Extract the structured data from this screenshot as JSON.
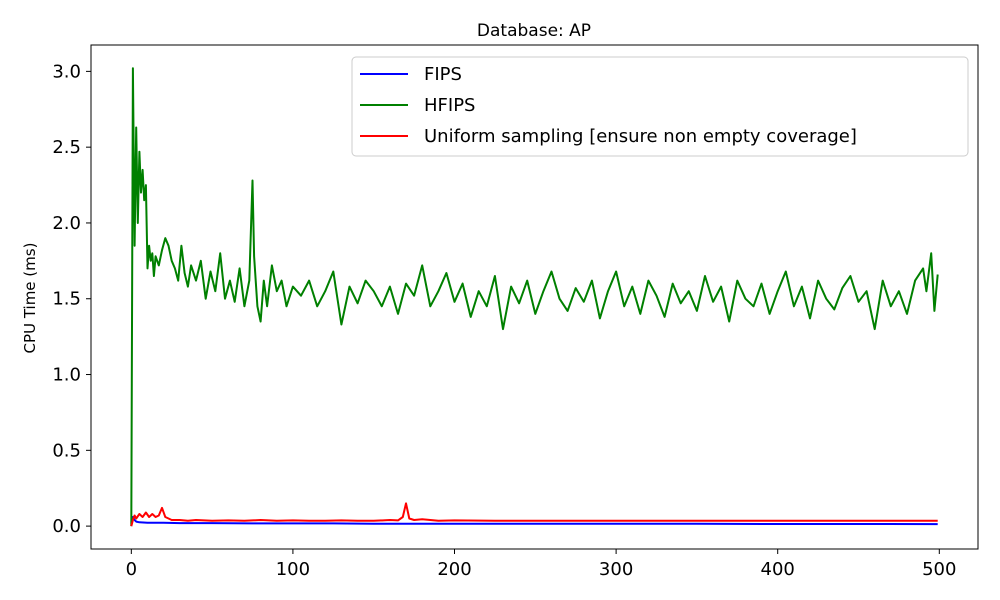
{
  "chart_data": {
    "type": "line",
    "title": "Database: AP",
    "xlabel": "",
    "ylabel": "CPU Time (ms)",
    "xlim": [
      -24.95,
      523.95
    ],
    "ylim": [
      -0.151,
      3.174
    ],
    "xticks": [
      0,
      100,
      200,
      300,
      400,
      500
    ],
    "yticks": [
      0.0,
      0.5,
      1.0,
      1.5,
      2.0,
      2.5,
      3.0
    ],
    "grid": false,
    "legend_position": "top-right",
    "series": [
      {
        "name": "FIPS",
        "color": "#0000ff",
        "x": [
          0,
          1,
          2,
          3,
          5,
          10,
          15,
          20,
          30,
          50,
          75,
          100,
          125,
          150,
          175,
          200,
          250,
          300,
          350,
          400,
          450,
          499
        ],
        "y": [
          0.0,
          0.06,
          0.04,
          0.03,
          0.025,
          0.022,
          0.022,
          0.022,
          0.02,
          0.02,
          0.018,
          0.018,
          0.018,
          0.016,
          0.016,
          0.016,
          0.015,
          0.015,
          0.015,
          0.014,
          0.014,
          0.013
        ]
      },
      {
        "name": "HFIPS",
        "color": "#008000",
        "x": [
          0,
          1,
          2,
          3,
          4,
          5,
          6,
          7,
          8,
          9,
          10,
          11,
          12,
          13,
          14,
          15,
          17,
          19,
          21,
          23,
          25,
          27,
          29,
          31,
          33,
          35,
          37,
          40,
          43,
          46,
          49,
          52,
          55,
          58,
          61,
          64,
          67,
          70,
          73,
          75,
          76,
          78,
          80,
          82,
          84,
          87,
          90,
          93,
          96,
          100,
          105,
          110,
          115,
          120,
          125,
          130,
          135,
          140,
          145,
          150,
          155,
          160,
          165,
          170,
          175,
          180,
          185,
          190,
          195,
          200,
          205,
          210,
          215,
          220,
          225,
          230,
          235,
          240,
          245,
          250,
          255,
          260,
          265,
          270,
          275,
          280,
          285,
          290,
          295,
          300,
          305,
          310,
          315,
          320,
          325,
          330,
          335,
          340,
          345,
          350,
          355,
          360,
          365,
          370,
          375,
          380,
          385,
          390,
          395,
          400,
          405,
          410,
          415,
          420,
          425,
          430,
          435,
          440,
          445,
          450,
          455,
          460,
          465,
          470,
          475,
          480,
          485,
          490,
          492,
          495,
          497,
          499
        ],
        "y": [
          0.0,
          3.02,
          1.85,
          2.63,
          2.0,
          2.47,
          2.2,
          2.35,
          2.15,
          2.25,
          1.7,
          1.85,
          1.75,
          1.8,
          1.65,
          1.78,
          1.72,
          1.82,
          1.9,
          1.85,
          1.75,
          1.7,
          1.62,
          1.85,
          1.67,
          1.58,
          1.72,
          1.62,
          1.75,
          1.5,
          1.68,
          1.55,
          1.8,
          1.5,
          1.62,
          1.48,
          1.7,
          1.45,
          1.62,
          2.28,
          1.78,
          1.45,
          1.35,
          1.62,
          1.45,
          1.72,
          1.55,
          1.62,
          1.45,
          1.58,
          1.52,
          1.62,
          1.45,
          1.55,
          1.68,
          1.33,
          1.58,
          1.47,
          1.62,
          1.55,
          1.45,
          1.58,
          1.4,
          1.6,
          1.52,
          1.72,
          1.45,
          1.55,
          1.67,
          1.48,
          1.6,
          1.38,
          1.55,
          1.45,
          1.65,
          1.3,
          1.58,
          1.47,
          1.62,
          1.4,
          1.55,
          1.68,
          1.5,
          1.42,
          1.57,
          1.48,
          1.62,
          1.37,
          1.55,
          1.68,
          1.45,
          1.58,
          1.4,
          1.62,
          1.52,
          1.38,
          1.6,
          1.47,
          1.55,
          1.42,
          1.65,
          1.48,
          1.58,
          1.35,
          1.62,
          1.5,
          1.45,
          1.6,
          1.4,
          1.55,
          1.68,
          1.45,
          1.58,
          1.37,
          1.62,
          1.5,
          1.43,
          1.57,
          1.65,
          1.48,
          1.55,
          1.3,
          1.62,
          1.45,
          1.55,
          1.4,
          1.62,
          1.7,
          1.55,
          1.8,
          1.42,
          1.66
        ]
      },
      {
        "name": "Uniform sampling [ensure non empty coverage]",
        "color": "#ff0000",
        "x": [
          0,
          1,
          2,
          3,
          5,
          7,
          9,
          11,
          13,
          15,
          17,
          19,
          21,
          23,
          25,
          30,
          35,
          40,
          50,
          60,
          70,
          80,
          90,
          100,
          110,
          120,
          130,
          140,
          150,
          160,
          165,
          168,
          170,
          172,
          175,
          180,
          190,
          200,
          225,
          250,
          275,
          300,
          325,
          350,
          375,
          400,
          425,
          450,
          475,
          499
        ],
        "y": [
          0.0,
          0.04,
          0.07,
          0.05,
          0.08,
          0.06,
          0.09,
          0.06,
          0.08,
          0.06,
          0.07,
          0.12,
          0.06,
          0.05,
          0.04,
          0.04,
          0.035,
          0.04,
          0.035,
          0.038,
          0.035,
          0.04,
          0.035,
          0.038,
          0.035,
          0.035,
          0.038,
          0.035,
          0.035,
          0.04,
          0.038,
          0.06,
          0.15,
          0.05,
          0.04,
          0.045,
          0.035,
          0.038,
          0.035,
          0.035,
          0.035,
          0.035,
          0.035,
          0.035,
          0.035,
          0.035,
          0.035,
          0.035,
          0.035,
          0.035
        ]
      }
    ]
  }
}
